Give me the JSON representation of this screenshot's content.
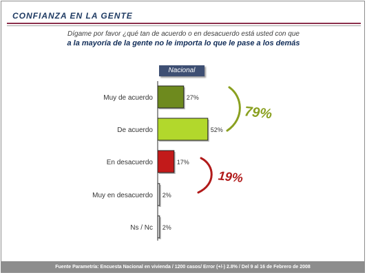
{
  "header": {
    "title": "CONFIANZA EN LA GENTE",
    "question_line1": "Dígame por favor ¿qué tan de acuerdo o en desacuerdo está usted con que",
    "question_line2": "a la mayoría de la gente no le importa lo que le pase a los demás"
  },
  "legend": {
    "label": "Nacional"
  },
  "footer": {
    "text": "Fuente Parametría: Encuesta Nacional en vivienda / 1200 casos/ Error (+/-) 2.8% / Del 9 al 16 de Febrero de 2008"
  },
  "chart_data": {
    "type": "bar",
    "orientation": "horizontal",
    "categories": [
      "Muy de acuerdo",
      "De acuerdo",
      "En desacuerdo",
      "Muy en desacuerdo",
      "Ns / Nc"
    ],
    "series": [
      {
        "name": "Nacional",
        "values": [
          27,
          52,
          17,
          2,
          2
        ]
      }
    ],
    "value_labels": [
      "27%",
      "52%",
      "17%",
      "2%",
      "2%"
    ],
    "bar_colors": [
      "#6e8a1e",
      "#b2d82c",
      "#c21a1a",
      "#e8e8e8",
      "#e8e8e8"
    ],
    "groups": [
      {
        "label": "79%",
        "categories": [
          "Muy de acuerdo",
          "De acuerdo"
        ],
        "color": "#8aa020"
      },
      {
        "label": "19%",
        "categories": [
          "En desacuerdo",
          "Muy en desacuerdo"
        ],
        "color": "#b11a1a"
      }
    ],
    "grid": false
  }
}
